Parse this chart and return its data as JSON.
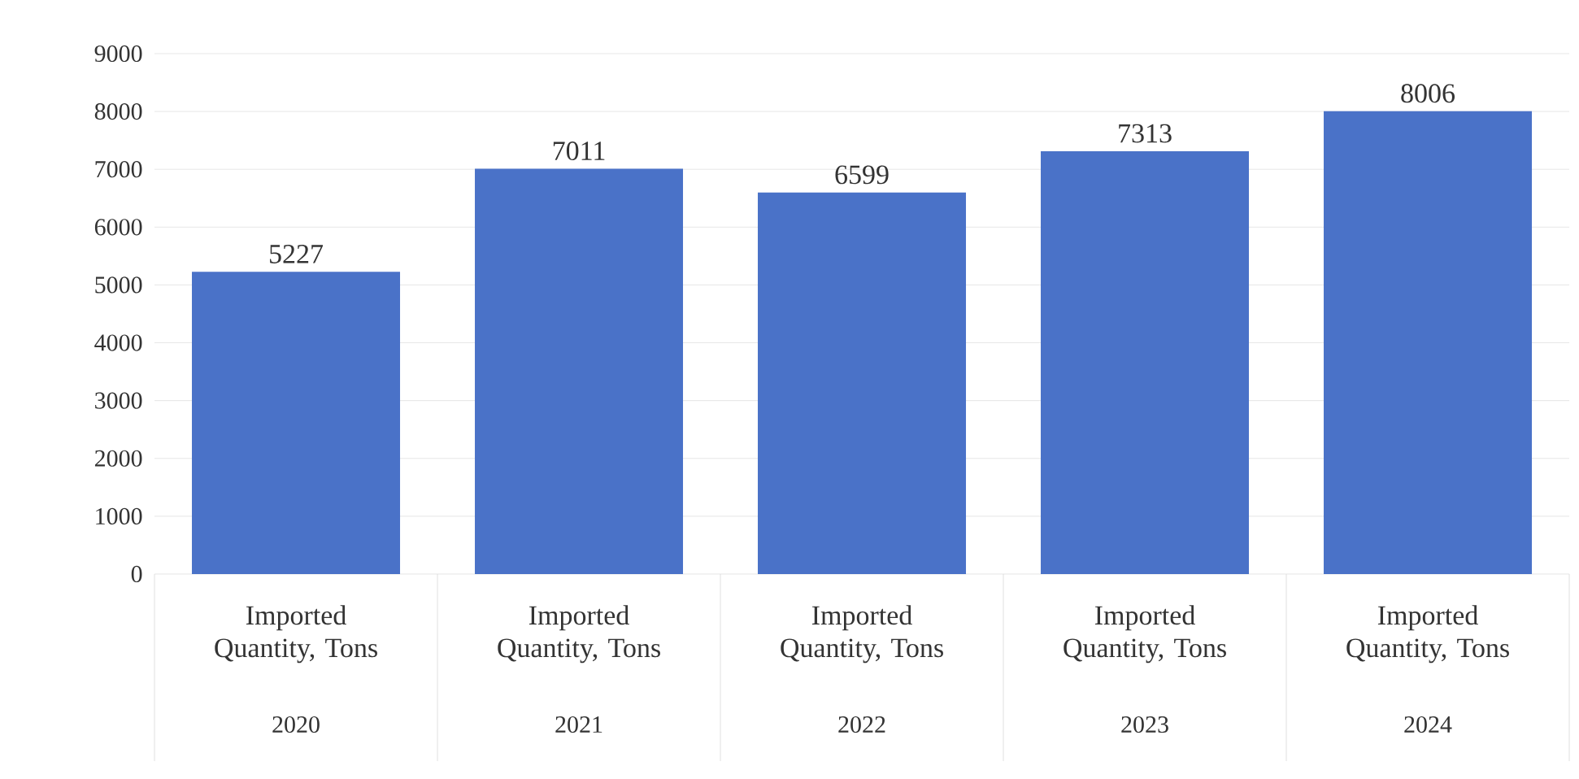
{
  "chart_data": {
    "type": "bar",
    "categories": [
      "2020",
      "2021",
      "2022",
      "2023",
      "2024"
    ],
    "series": [
      {
        "name": "Imported Quantity, Tons",
        "color": "#4a72c8",
        "values": [
          5227,
          7011,
          6599,
          7313,
          8006
        ]
      }
    ],
    "ylim": [
      0,
      9000
    ],
    "yticks": [
      0,
      1000,
      2000,
      3000,
      4000,
      5000,
      6000,
      7000,
      8000,
      9000
    ],
    "grid": "y",
    "data_labels": true
  }
}
